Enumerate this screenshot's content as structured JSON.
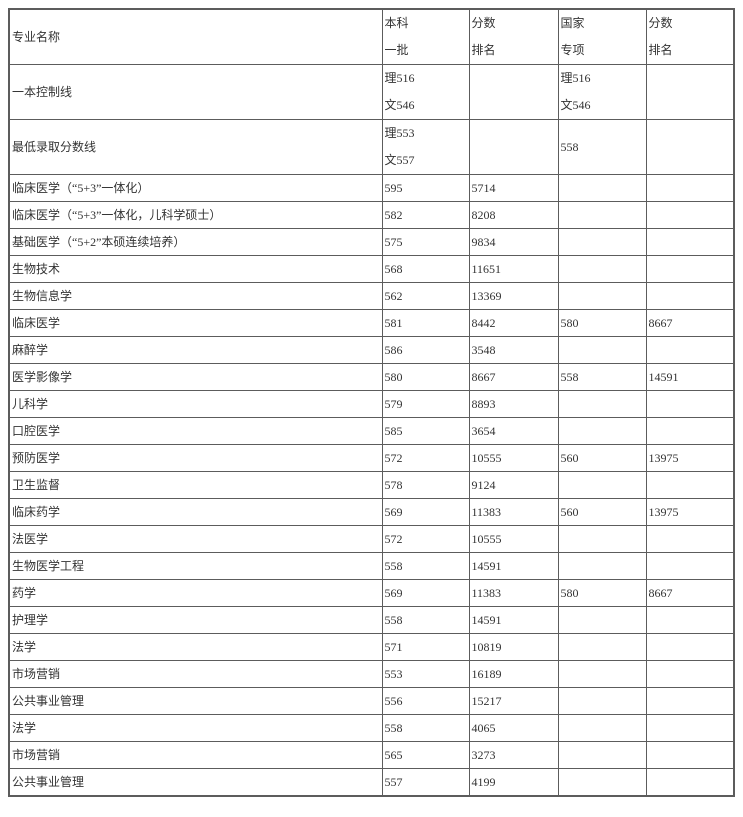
{
  "table": {
    "border_color": "#5c5c5c",
    "text_color": "#333333",
    "columns": [
      [
        "专业名称"
      ],
      [
        "本科",
        "一批"
      ],
      [
        "分数",
        "排名"
      ],
      [
        "国家",
        "专项"
      ],
      [
        "分数",
        "排名"
      ]
    ],
    "rows": [
      [
        [
          "一本控制线"
        ],
        [
          "理516",
          "文546"
        ],
        [],
        [
          "理516",
          "文546"
        ],
        []
      ],
      [
        [
          "最低录取分数线"
        ],
        [
          "理553",
          "文557"
        ],
        [],
        [
          "558"
        ],
        []
      ],
      [
        [
          "临床医学（“5+3”一体化）"
        ],
        [
          "595"
        ],
        [
          "5714"
        ],
        [],
        []
      ],
      [
        [
          "临床医学（“5+3”一体化，儿科学硕士）"
        ],
        [
          "582"
        ],
        [
          "8208"
        ],
        [],
        []
      ],
      [
        [
          "基础医学（“5+2”本硕连续培养）"
        ],
        [
          "575"
        ],
        [
          "9834"
        ],
        [],
        []
      ],
      [
        [
          "生物技术"
        ],
        [
          "568"
        ],
        [
          "11651"
        ],
        [],
        []
      ],
      [
        [
          "生物信息学"
        ],
        [
          "562"
        ],
        [
          "13369"
        ],
        [],
        []
      ],
      [
        [
          "临床医学"
        ],
        [
          "581"
        ],
        [
          "8442"
        ],
        [
          "580"
        ],
        [
          "8667"
        ]
      ],
      [
        [
          "麻醉学"
        ],
        [
          "586"
        ],
        [
          "3548"
        ],
        [],
        []
      ],
      [
        [
          "医学影像学"
        ],
        [
          "580"
        ],
        [
          "8667"
        ],
        [
          "558"
        ],
        [
          "14591"
        ]
      ],
      [
        [
          "儿科学"
        ],
        [
          "579"
        ],
        [
          "8893"
        ],
        [],
        []
      ],
      [
        [
          "口腔医学"
        ],
        [
          "585"
        ],
        [
          "3654"
        ],
        [],
        []
      ],
      [
        [
          "预防医学"
        ],
        [
          "572"
        ],
        [
          "10555"
        ],
        [
          "560"
        ],
        [
          "13975"
        ]
      ],
      [
        [
          "卫生监督"
        ],
        [
          "578"
        ],
        [
          "9124"
        ],
        [],
        []
      ],
      [
        [
          "临床药学"
        ],
        [
          "569"
        ],
        [
          "11383"
        ],
        [
          "560"
        ],
        [
          "13975"
        ]
      ],
      [
        [
          "法医学"
        ],
        [
          "572"
        ],
        [
          "10555"
        ],
        [],
        []
      ],
      [
        [
          "生物医学工程"
        ],
        [
          "558"
        ],
        [
          "14591"
        ],
        [],
        []
      ],
      [
        [
          "药学"
        ],
        [
          "569"
        ],
        [
          "11383"
        ],
        [
          "580"
        ],
        [
          "8667"
        ]
      ],
      [
        [
          "护理学"
        ],
        [
          "558"
        ],
        [
          "14591"
        ],
        [],
        []
      ],
      [
        [
          "法学"
        ],
        [
          "571"
        ],
        [
          "10819"
        ],
        [],
        []
      ],
      [
        [
          "市场营销"
        ],
        [
          "553"
        ],
        [
          "16189"
        ],
        [],
        []
      ],
      [
        [
          "公共事业管理"
        ],
        [
          "556"
        ],
        [
          "15217"
        ],
        [],
        []
      ],
      [
        [
          "法学"
        ],
        [
          "558"
        ],
        [
          "4065"
        ],
        [],
        []
      ],
      [
        [
          "市场营销"
        ],
        [
          "565"
        ],
        [
          "3273"
        ],
        [],
        []
      ],
      [
        [
          "公共事业管理"
        ],
        [
          "557"
        ],
        [
          "4199"
        ],
        [],
        []
      ]
    ]
  }
}
